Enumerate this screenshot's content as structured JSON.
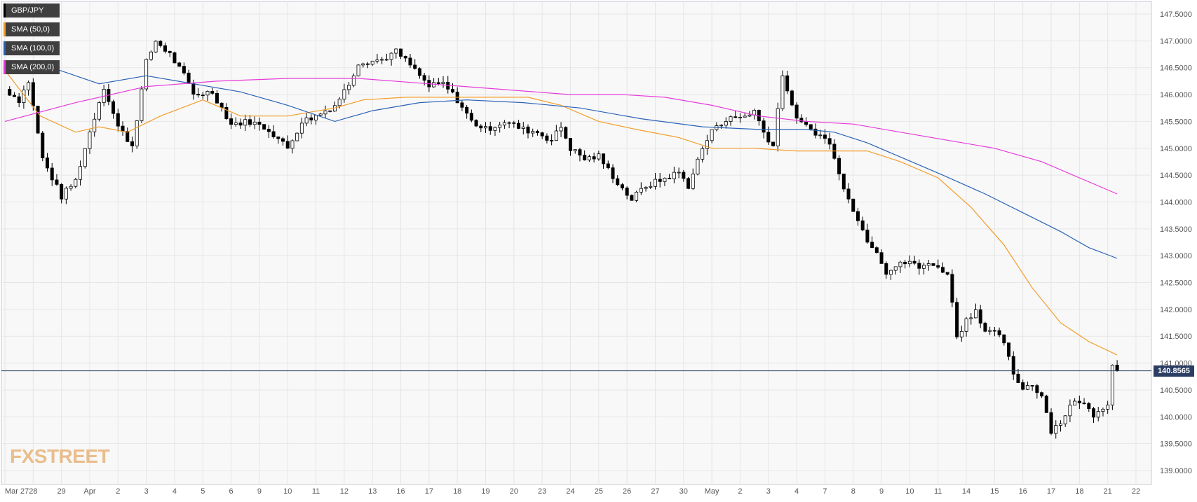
{
  "chart_data": {
    "type": "candlestick",
    "symbol": "GBP/JPY",
    "y_ticks": [
      "147.5000",
      "147.0000",
      "146.5000",
      "146.0000",
      "145.5000",
      "145.0000",
      "144.5000",
      "144.0000",
      "143.5000",
      "143.0000",
      "142.5000",
      "142.0000",
      "141.5000",
      "141.0000",
      "140.5000",
      "140.0000",
      "139.5000",
      "139.0000"
    ],
    "ylim": [
      139.0,
      147.75
    ],
    "x_ticks": [
      {
        "label": "Mar 27",
        "i": 0
      },
      {
        "label": "28",
        "i": 12
      },
      {
        "label": "29",
        "i": 24
      },
      {
        "label": "Apr",
        "i": 36
      },
      {
        "label": "2",
        "i": 48
      },
      {
        "label": "3",
        "i": 60
      },
      {
        "label": "4",
        "i": 72
      },
      {
        "label": "5",
        "i": 84
      },
      {
        "label": "6",
        "i": 96
      },
      {
        "label": "9",
        "i": 108
      },
      {
        "label": "10",
        "i": 120
      },
      {
        "label": "11",
        "i": 132
      },
      {
        "label": "12",
        "i": 144
      },
      {
        "label": "13",
        "i": 156
      },
      {
        "label": "16",
        "i": 168
      },
      {
        "label": "17",
        "i": 180
      },
      {
        "label": "18",
        "i": 192
      },
      {
        "label": "19",
        "i": 204
      },
      {
        "label": "20",
        "i": 216
      },
      {
        "label": "23",
        "i": 228
      },
      {
        "label": "24",
        "i": 240
      },
      {
        "label": "25",
        "i": 252
      },
      {
        "label": "26",
        "i": 264
      },
      {
        "label": "27",
        "i": 276
      },
      {
        "label": "30",
        "i": 288
      },
      {
        "label": "May",
        "i": 300
      },
      {
        "label": "2",
        "i": 312
      },
      {
        "label": "3",
        "i": 324
      },
      {
        "label": "4",
        "i": 336
      },
      {
        "label": "7",
        "i": 348
      },
      {
        "label": "8",
        "i": 360
      },
      {
        "label": "9",
        "i": 372
      },
      {
        "label": "10",
        "i": 384
      },
      {
        "label": "11",
        "i": 396
      },
      {
        "label": "14",
        "i": 408
      },
      {
        "label": "15",
        "i": 420
      },
      {
        "label": "16",
        "i": 432
      },
      {
        "label": "17",
        "i": 444
      },
      {
        "label": "18",
        "i": 456
      },
      {
        "label": "21",
        "i": 468
      },
      {
        "label": "22",
        "i": 480
      }
    ],
    "last_price": 140.8565,
    "last_price_label": "140.8565",
    "grid": true,
    "legend_position": "top-left",
    "close_anchors": [
      [
        0,
        146.1
      ],
      [
        6,
        145.9
      ],
      [
        10,
        146.25
      ],
      [
        16,
        144.8
      ],
      [
        24,
        144.1
      ],
      [
        30,
        144.4
      ],
      [
        36,
        145.3
      ],
      [
        42,
        146.15
      ],
      [
        48,
        145.4
      ],
      [
        54,
        145.05
      ],
      [
        60,
        146.6
      ],
      [
        64,
        147.0
      ],
      [
        70,
        146.75
      ],
      [
        76,
        146.35
      ],
      [
        80,
        146.0
      ],
      [
        88,
        146.05
      ],
      [
        96,
        145.45
      ],
      [
        104,
        145.5
      ],
      [
        112,
        145.35
      ],
      [
        120,
        145.0
      ],
      [
        126,
        145.5
      ],
      [
        132,
        145.6
      ],
      [
        140,
        145.8
      ],
      [
        146,
        146.2
      ],
      [
        150,
        146.6
      ],
      [
        160,
        146.65
      ],
      [
        166,
        146.8
      ],
      [
        172,
        146.55
      ],
      [
        180,
        146.15
      ],
      [
        186,
        146.2
      ],
      [
        192,
        145.9
      ],
      [
        198,
        145.5
      ],
      [
        204,
        145.35
      ],
      [
        212,
        145.5
      ],
      [
        220,
        145.35
      ],
      [
        226,
        145.3
      ],
      [
        232,
        145.15
      ],
      [
        236,
        145.4
      ],
      [
        240,
        145.0
      ],
      [
        246,
        144.8
      ],
      [
        252,
        144.85
      ],
      [
        256,
        144.6
      ],
      [
        262,
        144.25
      ],
      [
        266,
        144.05
      ],
      [
        272,
        144.3
      ],
      [
        278,
        144.4
      ],
      [
        286,
        144.55
      ],
      [
        290,
        144.3
      ],
      [
        296,
        145.0
      ],
      [
        302,
        145.45
      ],
      [
        308,
        145.55
      ],
      [
        314,
        145.6
      ],
      [
        318,
        145.7
      ],
      [
        322,
        145.3
      ],
      [
        326,
        145.05
      ],
      [
        330,
        146.4
      ],
      [
        334,
        145.75
      ],
      [
        338,
        145.45
      ],
      [
        344,
        145.3
      ],
      [
        350,
        145.1
      ],
      [
        354,
        144.5
      ],
      [
        358,
        144.1
      ],
      [
        362,
        143.65
      ],
      [
        366,
        143.3
      ],
      [
        370,
        143.1
      ],
      [
        374,
        142.7
      ],
      [
        378,
        142.8
      ],
      [
        384,
        142.9
      ],
      [
        388,
        142.75
      ],
      [
        392,
        142.9
      ],
      [
        396,
        142.75
      ],
      [
        400,
        142.7
      ],
      [
        404,
        141.5
      ],
      [
        408,
        141.8
      ],
      [
        412,
        142.0
      ],
      [
        416,
        141.6
      ],
      [
        420,
        141.55
      ],
      [
        424,
        141.4
      ],
      [
        428,
        140.75
      ],
      [
        432,
        140.55
      ],
      [
        436,
        140.6
      ],
      [
        440,
        140.4
      ],
      [
        444,
        139.75
      ],
      [
        448,
        139.9
      ],
      [
        452,
        140.2
      ],
      [
        456,
        140.3
      ],
      [
        462,
        140.05
      ],
      [
        466,
        140.2
      ],
      [
        468,
        140.25
      ],
      [
        470,
        140.95
      ],
      [
        472,
        140.86
      ]
    ],
    "sma_series": [
      {
        "name": "SMA (50,0)",
        "color": "#f39c27",
        "points": [
          [
            0,
            146.45
          ],
          [
            15,
            145.6
          ],
          [
            30,
            145.3
          ],
          [
            40,
            145.4
          ],
          [
            52,
            145.3
          ],
          [
            66,
            145.6
          ],
          [
            84,
            145.9
          ],
          [
            100,
            145.6
          ],
          [
            120,
            145.6
          ],
          [
            140,
            145.75
          ],
          [
            152,
            145.9
          ],
          [
            170,
            145.95
          ],
          [
            196,
            145.95
          ],
          [
            222,
            145.95
          ],
          [
            236,
            145.8
          ],
          [
            252,
            145.5
          ],
          [
            268,
            145.35
          ],
          [
            286,
            145.2
          ],
          [
            300,
            145.0
          ],
          [
            318,
            145.0
          ],
          [
            336,
            144.95
          ],
          [
            352,
            144.95
          ],
          [
            366,
            144.95
          ],
          [
            380,
            144.75
          ],
          [
            396,
            144.45
          ],
          [
            410,
            143.9
          ],
          [
            424,
            143.2
          ],
          [
            436,
            142.4
          ],
          [
            448,
            141.75
          ],
          [
            460,
            141.4
          ],
          [
            472,
            141.15
          ]
        ]
      },
      {
        "name": "SMA (100,0)",
        "color": "#2a62b6",
        "points": [
          [
            0,
            146.5
          ],
          [
            20,
            146.5
          ],
          [
            40,
            146.2
          ],
          [
            60,
            146.35
          ],
          [
            80,
            146.2
          ],
          [
            100,
            146.05
          ],
          [
            120,
            145.8
          ],
          [
            140,
            145.5
          ],
          [
            156,
            145.7
          ],
          [
            176,
            145.85
          ],
          [
            196,
            145.9
          ],
          [
            220,
            145.85
          ],
          [
            244,
            145.75
          ],
          [
            270,
            145.55
          ],
          [
            296,
            145.4
          ],
          [
            320,
            145.35
          ],
          [
            340,
            145.35
          ],
          [
            352,
            145.3
          ],
          [
            366,
            145.1
          ],
          [
            382,
            144.8
          ],
          [
            398,
            144.5
          ],
          [
            416,
            144.15
          ],
          [
            432,
            143.8
          ],
          [
            448,
            143.45
          ],
          [
            460,
            143.15
          ],
          [
            472,
            142.95
          ]
        ]
      },
      {
        "name": "SMA (200,0)",
        "color": "#e63bd9",
        "points": [
          [
            0,
            145.5
          ],
          [
            30,
            145.85
          ],
          [
            60,
            146.15
          ],
          [
            90,
            146.25
          ],
          [
            120,
            146.3
          ],
          [
            150,
            146.3
          ],
          [
            180,
            146.2
          ],
          [
            210,
            146.1
          ],
          [
            240,
            146.0
          ],
          [
            262,
            146.0
          ],
          [
            280,
            145.95
          ],
          [
            300,
            145.8
          ],
          [
            320,
            145.6
          ],
          [
            340,
            145.5
          ],
          [
            360,
            145.45
          ],
          [
            380,
            145.3
          ],
          [
            400,
            145.15
          ],
          [
            420,
            145.0
          ],
          [
            440,
            144.75
          ],
          [
            456,
            144.45
          ],
          [
            472,
            144.15
          ]
        ]
      }
    ]
  },
  "legend": [
    {
      "label": "GBP/JPY",
      "color": "#000000"
    },
    {
      "label": "SMA (50,0)",
      "color": "#f39c27"
    },
    {
      "label": "SMA (100,0)",
      "color": "#2a62b6"
    },
    {
      "label": "SMA (200,0)",
      "color": "#e63bd9"
    }
  ],
  "logo": {
    "part1": "FX",
    "part2": "STREET"
  },
  "colors": {
    "plot_bg": "#f8f8f8",
    "grid": "#e6e6e6",
    "price_line": "#2b3d63",
    "axis_text": "#555555"
  }
}
